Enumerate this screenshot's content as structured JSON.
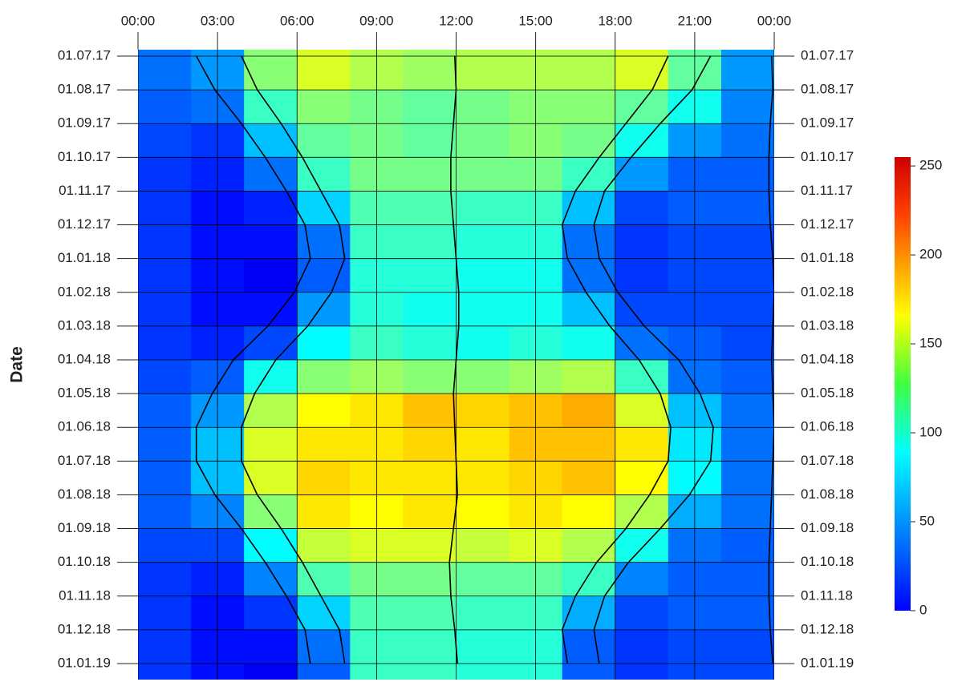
{
  "chart_data": {
    "type": "heatmap",
    "y_label": "Date",
    "xlim": [
      0,
      24
    ],
    "xticks": [
      {
        "value": 0,
        "label": "00:00"
      },
      {
        "value": 3,
        "label": "03:00"
      },
      {
        "value": 6,
        "label": "06:00"
      },
      {
        "value": 9,
        "label": "09:00"
      },
      {
        "value": 12,
        "label": "12:00"
      },
      {
        "value": 15,
        "label": "15:00"
      },
      {
        "value": 18,
        "label": "18:00"
      },
      {
        "value": 21,
        "label": "21:00"
      },
      {
        "value": 24,
        "label": "00:00"
      }
    ],
    "x_bins": [
      0,
      2,
      4,
      6,
      8,
      10,
      12,
      14,
      16,
      18,
      20,
      22,
      24
    ],
    "y_categories": [
      "01.07.17",
      "01.08.17",
      "01.09.17",
      "01.10.17",
      "01.11.17",
      "01.12.17",
      "01.01.18",
      "01.02.18",
      "01.03.18",
      "01.04.18",
      "01.05.18",
      "01.06.18",
      "01.07.18",
      "01.08.18",
      "01.09.18",
      "01.10.18",
      "01.11.18",
      "01.12.18",
      "01.01.19"
    ],
    "values": [
      [
        60,
        70,
        130,
        150,
        140,
        135,
        140,
        140,
        140,
        150,
        120,
        70
      ],
      [
        55,
        60,
        110,
        130,
        125,
        120,
        125,
        130,
        130,
        120,
        100,
        65
      ],
      [
        50,
        45,
        80,
        120,
        125,
        120,
        125,
        130,
        125,
        100,
        70,
        60
      ],
      [
        45,
        40,
        60,
        110,
        125,
        125,
        125,
        125,
        110,
        70,
        55,
        55
      ],
      [
        45,
        35,
        40,
        85,
        115,
        115,
        110,
        110,
        80,
        50,
        55,
        55
      ],
      [
        45,
        35,
        35,
        60,
        110,
        110,
        105,
        105,
        60,
        45,
        50,
        50
      ],
      [
        45,
        35,
        30,
        55,
        105,
        105,
        100,
        100,
        60,
        45,
        50,
        50
      ],
      [
        45,
        35,
        35,
        70,
        105,
        100,
        100,
        100,
        80,
        50,
        50,
        50
      ],
      [
        45,
        40,
        50,
        95,
        110,
        105,
        100,
        105,
        100,
        60,
        55,
        50
      ],
      [
        50,
        55,
        100,
        130,
        135,
        130,
        130,
        135,
        140,
        110,
        60,
        55
      ],
      [
        55,
        70,
        140,
        160,
        165,
        175,
        170,
        175,
        180,
        150,
        80,
        60
      ],
      [
        55,
        80,
        150,
        165,
        165,
        170,
        165,
        175,
        175,
        165,
        90,
        60
      ],
      [
        55,
        80,
        150,
        170,
        165,
        165,
        165,
        170,
        175,
        160,
        95,
        60
      ],
      [
        55,
        65,
        130,
        165,
        160,
        165,
        160,
        165,
        160,
        140,
        75,
        60
      ],
      [
        50,
        50,
        95,
        145,
        150,
        150,
        145,
        150,
        140,
        100,
        60,
        55
      ],
      [
        45,
        40,
        65,
        115,
        125,
        125,
        120,
        120,
        110,
        65,
        55,
        55
      ],
      [
        45,
        35,
        45,
        85,
        115,
        115,
        110,
        110,
        75,
        50,
        55,
        55
      ],
      [
        45,
        35,
        35,
        60,
        110,
        110,
        105,
        105,
        55,
        45,
        50,
        50
      ],
      [
        45,
        35,
        30,
        55,
        110,
        110,
        105,
        105,
        55,
        45,
        50,
        50
      ]
    ],
    "colormap": "jet",
    "clim": [
      0,
      255
    ],
    "cticks": [
      0,
      50,
      100,
      150,
      200,
      250
    ],
    "grid": true,
    "curves": [
      {
        "color": "#000000",
        "values": [
          2.2,
          2.9,
          3.9,
          4.8,
          5.6,
          6.3,
          6.5,
          5.9,
          4.9,
          3.6,
          2.8,
          2.2,
          2.2,
          2.9,
          3.9,
          4.8,
          5.6,
          6.3,
          6.5
        ]
      },
      {
        "color": "#000000",
        "values": [
          3.9,
          4.5,
          5.4,
          6.2,
          6.9,
          7.6,
          7.8,
          7.3,
          6.4,
          5.2,
          4.4,
          3.9,
          3.9,
          4.5,
          5.4,
          6.2,
          6.9,
          7.6,
          7.8
        ]
      },
      {
        "color": "#000000",
        "values": [
          11.95,
          12.0,
          11.9,
          11.8,
          11.8,
          11.9,
          12.0,
          12.1,
          12.1,
          12.0,
          11.9,
          11.95,
          12.0,
          12.05,
          11.9,
          11.75,
          11.8,
          11.95,
          12.05
        ]
      },
      {
        "color": "#000000",
        "values": [
          20.0,
          19.4,
          18.4,
          17.4,
          16.5,
          16.0,
          16.2,
          16.9,
          17.8,
          18.9,
          19.7,
          20.1,
          20.0,
          19.3,
          18.4,
          17.3,
          16.5,
          16.0,
          16.2
        ]
      },
      {
        "color": "#000000",
        "values": [
          21.6,
          20.9,
          19.7,
          18.6,
          17.6,
          17.2,
          17.4,
          18.1,
          19.1,
          20.4,
          21.2,
          21.7,
          21.6,
          20.8,
          19.7,
          18.5,
          17.6,
          17.2,
          17.4
        ]
      },
      {
        "color": "#000000",
        "values": [
          23.9,
          23.95,
          23.85,
          23.8,
          23.8,
          23.85,
          23.95,
          24.0,
          23.95,
          23.9,
          23.95,
          24.0,
          23.95,
          23.9,
          23.85,
          23.8,
          23.8,
          23.85,
          23.95
        ]
      }
    ]
  }
}
